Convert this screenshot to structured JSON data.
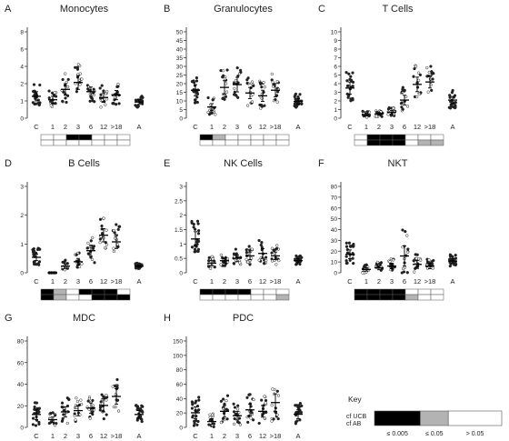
{
  "chart_data": [
    {
      "letter": "A",
      "title": "Monocytes",
      "type": "scatter",
      "categories": [
        "C",
        "1",
        "2",
        "3",
        "6",
        "12",
        ">18",
        "A"
      ],
      "yticks": [
        "0",
        "1",
        "2",
        "4",
        "6",
        "8"
      ],
      "means": [
        0.95,
        0.8,
        1.25,
        1.55,
        1.15,
        0.9,
        1.0,
        0.7
      ],
      "errors": [
        0.2,
        0.15,
        0.25,
        0.3,
        0.2,
        0.2,
        0.2,
        0.1
      ],
      "key_cells": [
        [
          "W",
          "W",
          "K",
          "K",
          "W",
          "W",
          "W"
        ],
        [
          "W",
          "W",
          "W",
          "W",
          "W",
          "W",
          "W"
        ]
      ]
    },
    {
      "letter": "B",
      "title": "Granulocytes",
      "type": "scatter",
      "categories": [
        "C",
        "1",
        "2",
        "3",
        "6",
        "12",
        ">18",
        "A"
      ],
      "yticks": [
        "0",
        "5",
        "10",
        "15",
        "20",
        "25",
        "30",
        "35",
        "40",
        "45",
        "50"
      ],
      "means": [
        5,
        2,
        5.5,
        6,
        4.5,
        4,
        5,
        3
      ],
      "errors": [
        1,
        0.6,
        1.2,
        1.3,
        1,
        1,
        1.2,
        0.5
      ],
      "key_cells": [
        [
          "K",
          "G",
          "W",
          "W",
          "W",
          "W",
          "W"
        ],
        [
          "W",
          "W",
          "W",
          "W",
          "W",
          "W",
          "W"
        ]
      ]
    },
    {
      "letter": "C",
      "title": "T Cells",
      "type": "scatter",
      "categories": [
        "C",
        "1",
        "2",
        "3",
        "6",
        "12",
        ">18",
        "A"
      ],
      "yticks": [
        "0",
        "1",
        "2",
        "3",
        "4",
        "5",
        "6",
        "7",
        "8",
        "9",
        "10"
      ],
      "means": [
        2.5,
        0.3,
        0.35,
        0.5,
        1.5,
        2.8,
        3,
        1.5
      ],
      "errors": [
        0.5,
        0.1,
        0.1,
        0.15,
        0.4,
        0.6,
        0.5,
        0.3
      ],
      "key_cells": [
        [
          "W",
          "K",
          "K",
          "K",
          "W",
          "W",
          "W"
        ],
        [
          "W",
          "K",
          "K",
          "K",
          "W",
          "G",
          "G"
        ]
      ]
    },
    {
      "letter": "D",
      "title": "B Cells",
      "type": "scatter",
      "categories": [
        "C",
        "1",
        "2",
        "3",
        "6",
        "12",
        ">18",
        "A"
      ],
      "yticks": [
        "0",
        "1",
        "2",
        "3"
      ],
      "means": [
        0.7,
        0.0,
        0.3,
        0.5,
        1.0,
        1.7,
        1.4,
        0.3
      ],
      "errors": [
        0.15,
        0,
        0.1,
        0.15,
        0.25,
        0.3,
        0.3,
        0.05
      ],
      "key_cells": [
        [
          "K",
          "G",
          "W",
          "K",
          "K",
          "K",
          "W"
        ],
        [
          "K",
          "G",
          "W",
          "W",
          "K",
          "K",
          "K"
        ]
      ]
    },
    {
      "letter": "E",
      "title": "NK Cells",
      "type": "scatter",
      "categories": [
        "C",
        "1",
        "2",
        "3",
        "6",
        "12",
        ">18",
        "A"
      ],
      "yticks": [
        "0",
        "0.5",
        "1",
        "1.5",
        "2",
        "2.5",
        "3"
      ],
      "means": [
        0.7,
        0.2,
        0.25,
        0.3,
        0.35,
        0.4,
        0.35,
        0.25
      ],
      "errors": [
        0.15,
        0.05,
        0.05,
        0.07,
        0.08,
        0.1,
        0.08,
        0.04
      ],
      "key_cells": [
        [
          "K",
          "K",
          "K",
          "K",
          "W",
          "W",
          "W"
        ],
        [
          "W",
          "W",
          "W",
          "W",
          "W",
          "W",
          "G"
        ]
      ]
    },
    {
      "letter": "F",
      "title": "NKT",
      "type": "scatter",
      "categories": [
        "C",
        "1",
        "2",
        "3",
        "6",
        "12",
        ">18",
        "A"
      ],
      "yticks": [
        "0",
        "10",
        "20",
        "30",
        "40",
        "50",
        "60",
        "70",
        "80"
      ],
      "means": [
        5.5,
        1,
        1.5,
        2,
        5,
        2.5,
        2,
        3.5
      ],
      "errors": [
        1.3,
        0.5,
        0.6,
        0.8,
        3,
        1.2,
        0.8,
        0.7
      ],
      "key_cells": [
        [
          "K",
          "K",
          "K",
          "K",
          "W",
          "W",
          "W"
        ],
        [
          "K",
          "K",
          "K",
          "K",
          "G",
          "W",
          "W"
        ]
      ]
    },
    {
      "letter": "G",
      "title": "MDC",
      "type": "scatter",
      "categories": [
        "C",
        "1",
        "2",
        "3",
        "6",
        "12",
        ">18",
        "A"
      ],
      "yticks": [
        "0",
        "20",
        "40",
        "60",
        "80"
      ],
      "means": [
        10,
        6,
        12,
        13,
        15,
        17,
        24,
        10
      ],
      "errors": [
        4,
        2,
        4,
        4,
        4,
        5,
        6,
        3
      ],
      "key_cells": [
        [
          "W",
          "W",
          "W",
          "W",
          "W",
          "W",
          "W"
        ],
        [
          "W",
          "W",
          "W",
          "W",
          "W",
          "W",
          "G"
        ]
      ]
    },
    {
      "letter": "H",
      "title": "PDC",
      "type": "scatter",
      "categories": [
        "C",
        "1",
        "2",
        "3",
        "6",
        "12",
        ">18",
        "A"
      ],
      "yticks": [
        "0",
        "20",
        "40",
        "60",
        "80",
        "100",
        "150"
      ],
      "means": [
        10,
        4,
        11,
        8,
        12,
        11,
        17,
        9
      ],
      "errors": [
        4,
        2,
        4,
        3,
        4,
        4,
        6,
        3
      ],
      "key_cells": [
        [
          "W",
          "W",
          "W",
          "W",
          "W",
          "W",
          "W"
        ],
        [
          "G",
          "W",
          "W",
          "W",
          "W",
          "W",
          "W"
        ]
      ]
    }
  ],
  "key": {
    "title": "Key",
    "row1": "cf UCB",
    "row2": "cf AB",
    "labels": [
      "≤ 0.005",
      "≤ 0.05",
      "> 0.05"
    ],
    "colors": {
      "K": "#000000",
      "G": "#b3b3b3",
      "W": "#ffffff"
    }
  }
}
